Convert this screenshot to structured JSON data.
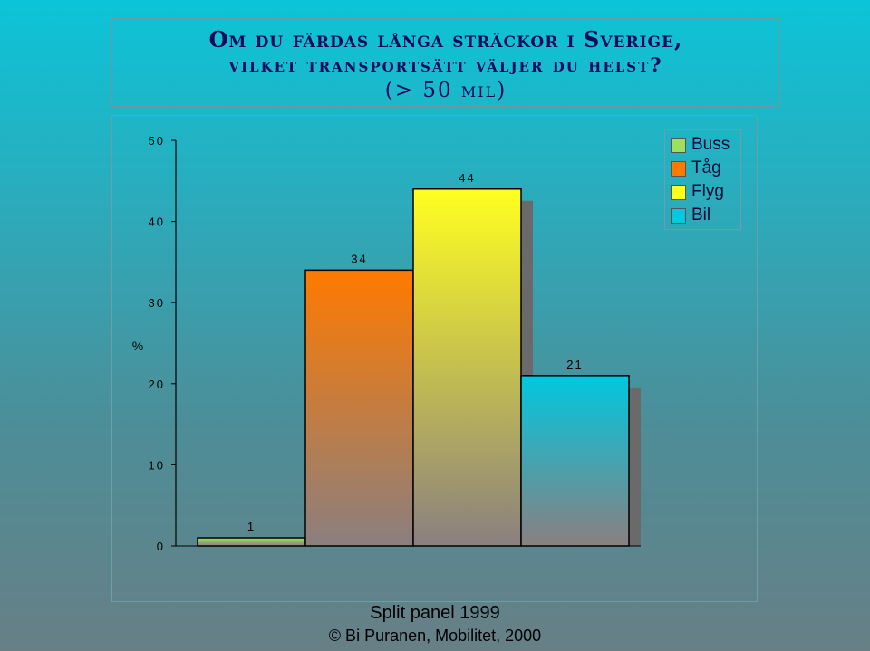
{
  "title": {
    "line1": "Om du färdas långa sträckor i Sverige,",
    "line2": "vilket transportsätt väljer du helst?",
    "line3": "(> 50 mil)"
  },
  "footer": {
    "line1": "Split panel 1999",
    "line2": "© Bi Puranen, Mobilitet, 2000"
  },
  "colors": {
    "Buss": "#9be060",
    "Tåg": "#ff7a00",
    "Flyg": "#ffff20",
    "Bil": "#00c8e0",
    "shadow": "#6a6a6a"
  },
  "chart_data": {
    "type": "bar",
    "categories": [
      "Buss",
      "Tåg",
      "Flyg",
      "Bil"
    ],
    "values": [
      1,
      34,
      44,
      21
    ],
    "value_labels": [
      "1",
      "34",
      "44",
      "21"
    ],
    "ylabel": "%",
    "ylim": [
      0,
      50
    ],
    "yticks": [
      "0",
      "10",
      "20",
      "30",
      "40",
      "50"
    ],
    "grid": false,
    "legend": "top-right",
    "legend_entries": [
      "Buss",
      "Tåg",
      "Flyg",
      "Bil"
    ]
  }
}
